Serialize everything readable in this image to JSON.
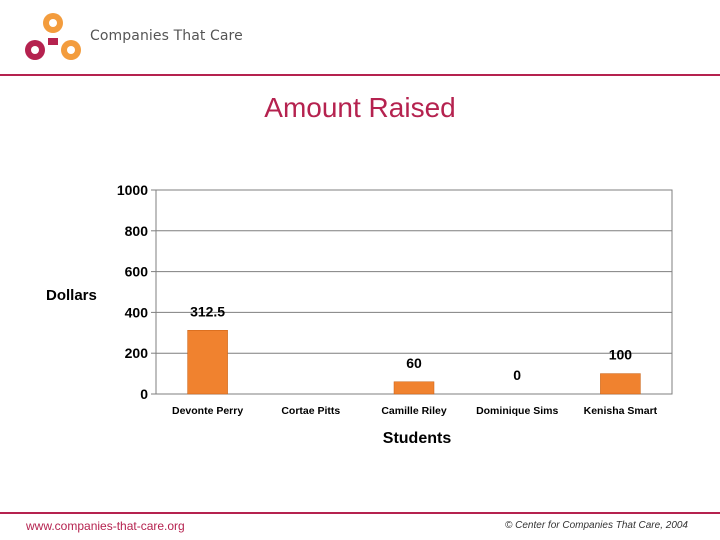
{
  "header": {
    "brand_name": "Companies That Care",
    "slide_title": "Amount Raised"
  },
  "footer": {
    "url": "www.companies-that-care.org",
    "copyright": "© Center for Companies That Care, 2004"
  },
  "colors": {
    "accent": "#b5224f",
    "bar": "#f0822f",
    "logo_orange": "#f39c3d",
    "logo_magenta": "#b5224f"
  },
  "chart_data": {
    "type": "bar",
    "categories": [
      "Devonte Perry",
      "Cortae Pitts",
      "Camille Riley",
      "Dominique Sims",
      "Kenisha Smart"
    ],
    "values": [
      312.5,
      null,
      60,
      0,
      100
    ],
    "data_labels": [
      "312.5",
      "",
      "60",
      "0",
      "100"
    ],
    "xlabel": "Students",
    "ylabel": "Dollars",
    "ylim": [
      0,
      1000
    ],
    "yticks": [
      0,
      200,
      400,
      600,
      800,
      1000
    ],
    "grid": true,
    "legend": "none"
  }
}
